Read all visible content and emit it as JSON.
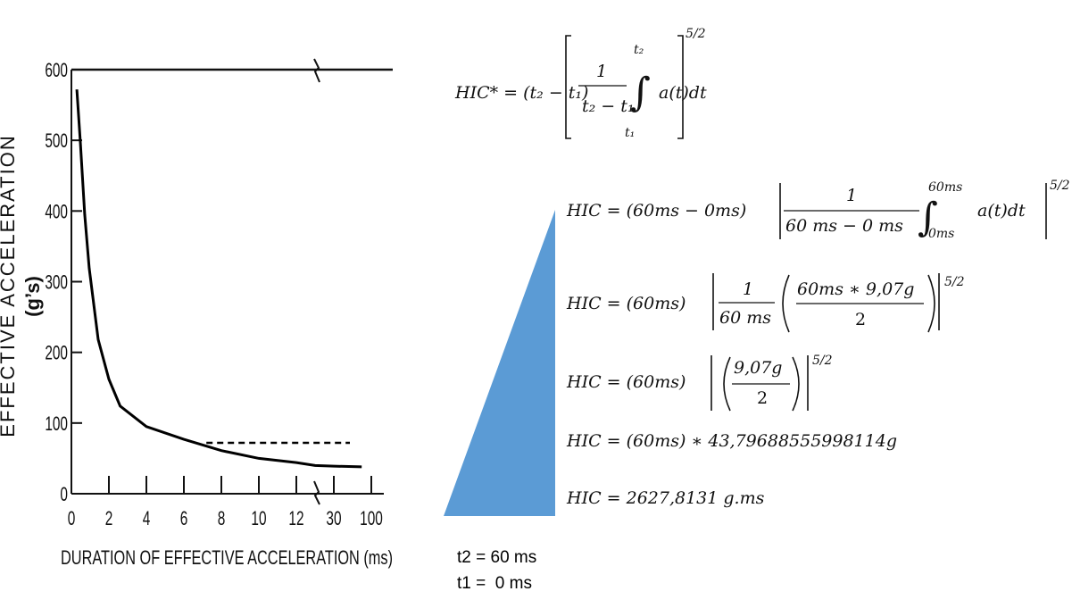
{
  "chart_data": {
    "type": "line",
    "ylabel": "EFFECTIVE ACCELERATION",
    "yunit": "(g’s)",
    "xlabel": "DURATION OF EFFECTIVE ACCELERATION (ms)",
    "xlim": [
      0,
      100
    ],
    "xticks": [
      0,
      2,
      4,
      6,
      8,
      10,
      12,
      30,
      100
    ],
    "ylim": [
      0,
      600
    ],
    "yticks": [
      0,
      100,
      200,
      300,
      400,
      500,
      600
    ],
    "series": [
      {
        "color": "#000000",
        "style": "solid",
        "x": [
          0.29,
          0.48,
          0.71,
          0.95,
          1.43,
          2,
          2.6,
          4,
          6,
          8,
          10,
          12,
          21,
          30,
          82
        ],
        "values": [
          572,
          496,
          395,
          319,
          218,
          162,
          124,
          95,
          77,
          61,
          50,
          44,
          40,
          39,
          38
        ]
      },
      {
        "color": "#000000",
        "style": "dashed",
        "x": [
          7.2,
          60
        ],
        "values": [
          72,
          72
        ]
      }
    ]
  },
  "equations": {
    "hic_def": {
      "lhs": "HIC* = (t₂ − t₁)",
      "num": "1",
      "den": "t₂ − t₁",
      "upper": "t₂",
      "lower": "t₁",
      "integrand": "a(t)dt",
      "power": "5/2"
    },
    "step1": {
      "lhs": "HIC = (60ms − 0ms)",
      "num": "1",
      "den": "60 ms  − 0 ms",
      "upper": "60ms",
      "lower": "0ms",
      "integrand": "a(t)dt",
      "power": "5/2"
    },
    "step2": {
      "lhs": "HIC = (60ms)",
      "num": "1",
      "den": "60 ms",
      "num2": "60ms ∗ 9,07g",
      "den2": "2",
      "power": "5/2"
    },
    "step3": {
      "lhs": "HIC = (60ms)",
      "num": "9,07g",
      "den": "2",
      "power": "5/2"
    },
    "step4": "HIC = (60ms) ∗ 43,79688555998114g",
    "step5": "HIC = 2627,8131 g.ms"
  },
  "notes": [
    "t2 = 60 ms",
    "t1 =  0 ms"
  ]
}
